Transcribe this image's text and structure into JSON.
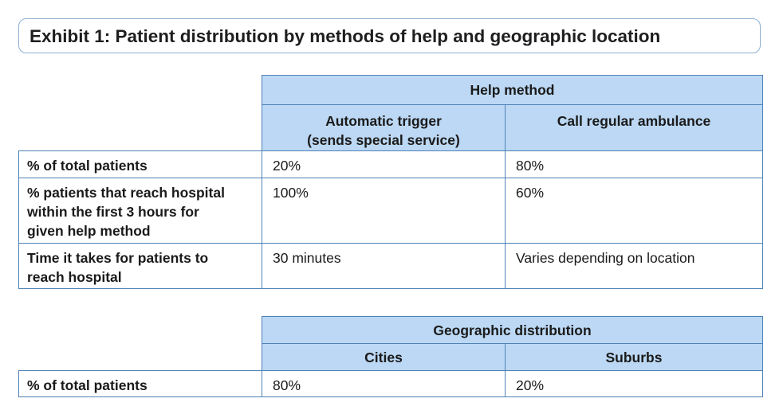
{
  "exhibit_title": "Exhibit 1: Patient distribution by methods of help and geographic location",
  "help_table": {
    "group_header": "Help method",
    "columns": [
      [
        "Automatic trigger",
        "(sends special service)"
      ],
      [
        "Call regular ambulance"
      ]
    ],
    "rows": [
      {
        "label": [
          "% of total patients"
        ],
        "values": [
          "20%",
          "80%"
        ]
      },
      {
        "label": [
          "% patients that reach hospital",
          "within the first 3 hours for",
          "given help method"
        ],
        "values": [
          "100%",
          "60%"
        ]
      },
      {
        "label": [
          "Time it takes for patients to",
          "reach hospital"
        ],
        "values": [
          "30 minutes",
          "Varies depending on location"
        ]
      }
    ]
  },
  "geo_table": {
    "group_header": "Geographic distribution",
    "columns": [
      "Cities",
      "Suburbs"
    ],
    "rows": [
      {
        "label": "% of total patients",
        "values": [
          "80%",
          "20%"
        ]
      }
    ]
  }
}
